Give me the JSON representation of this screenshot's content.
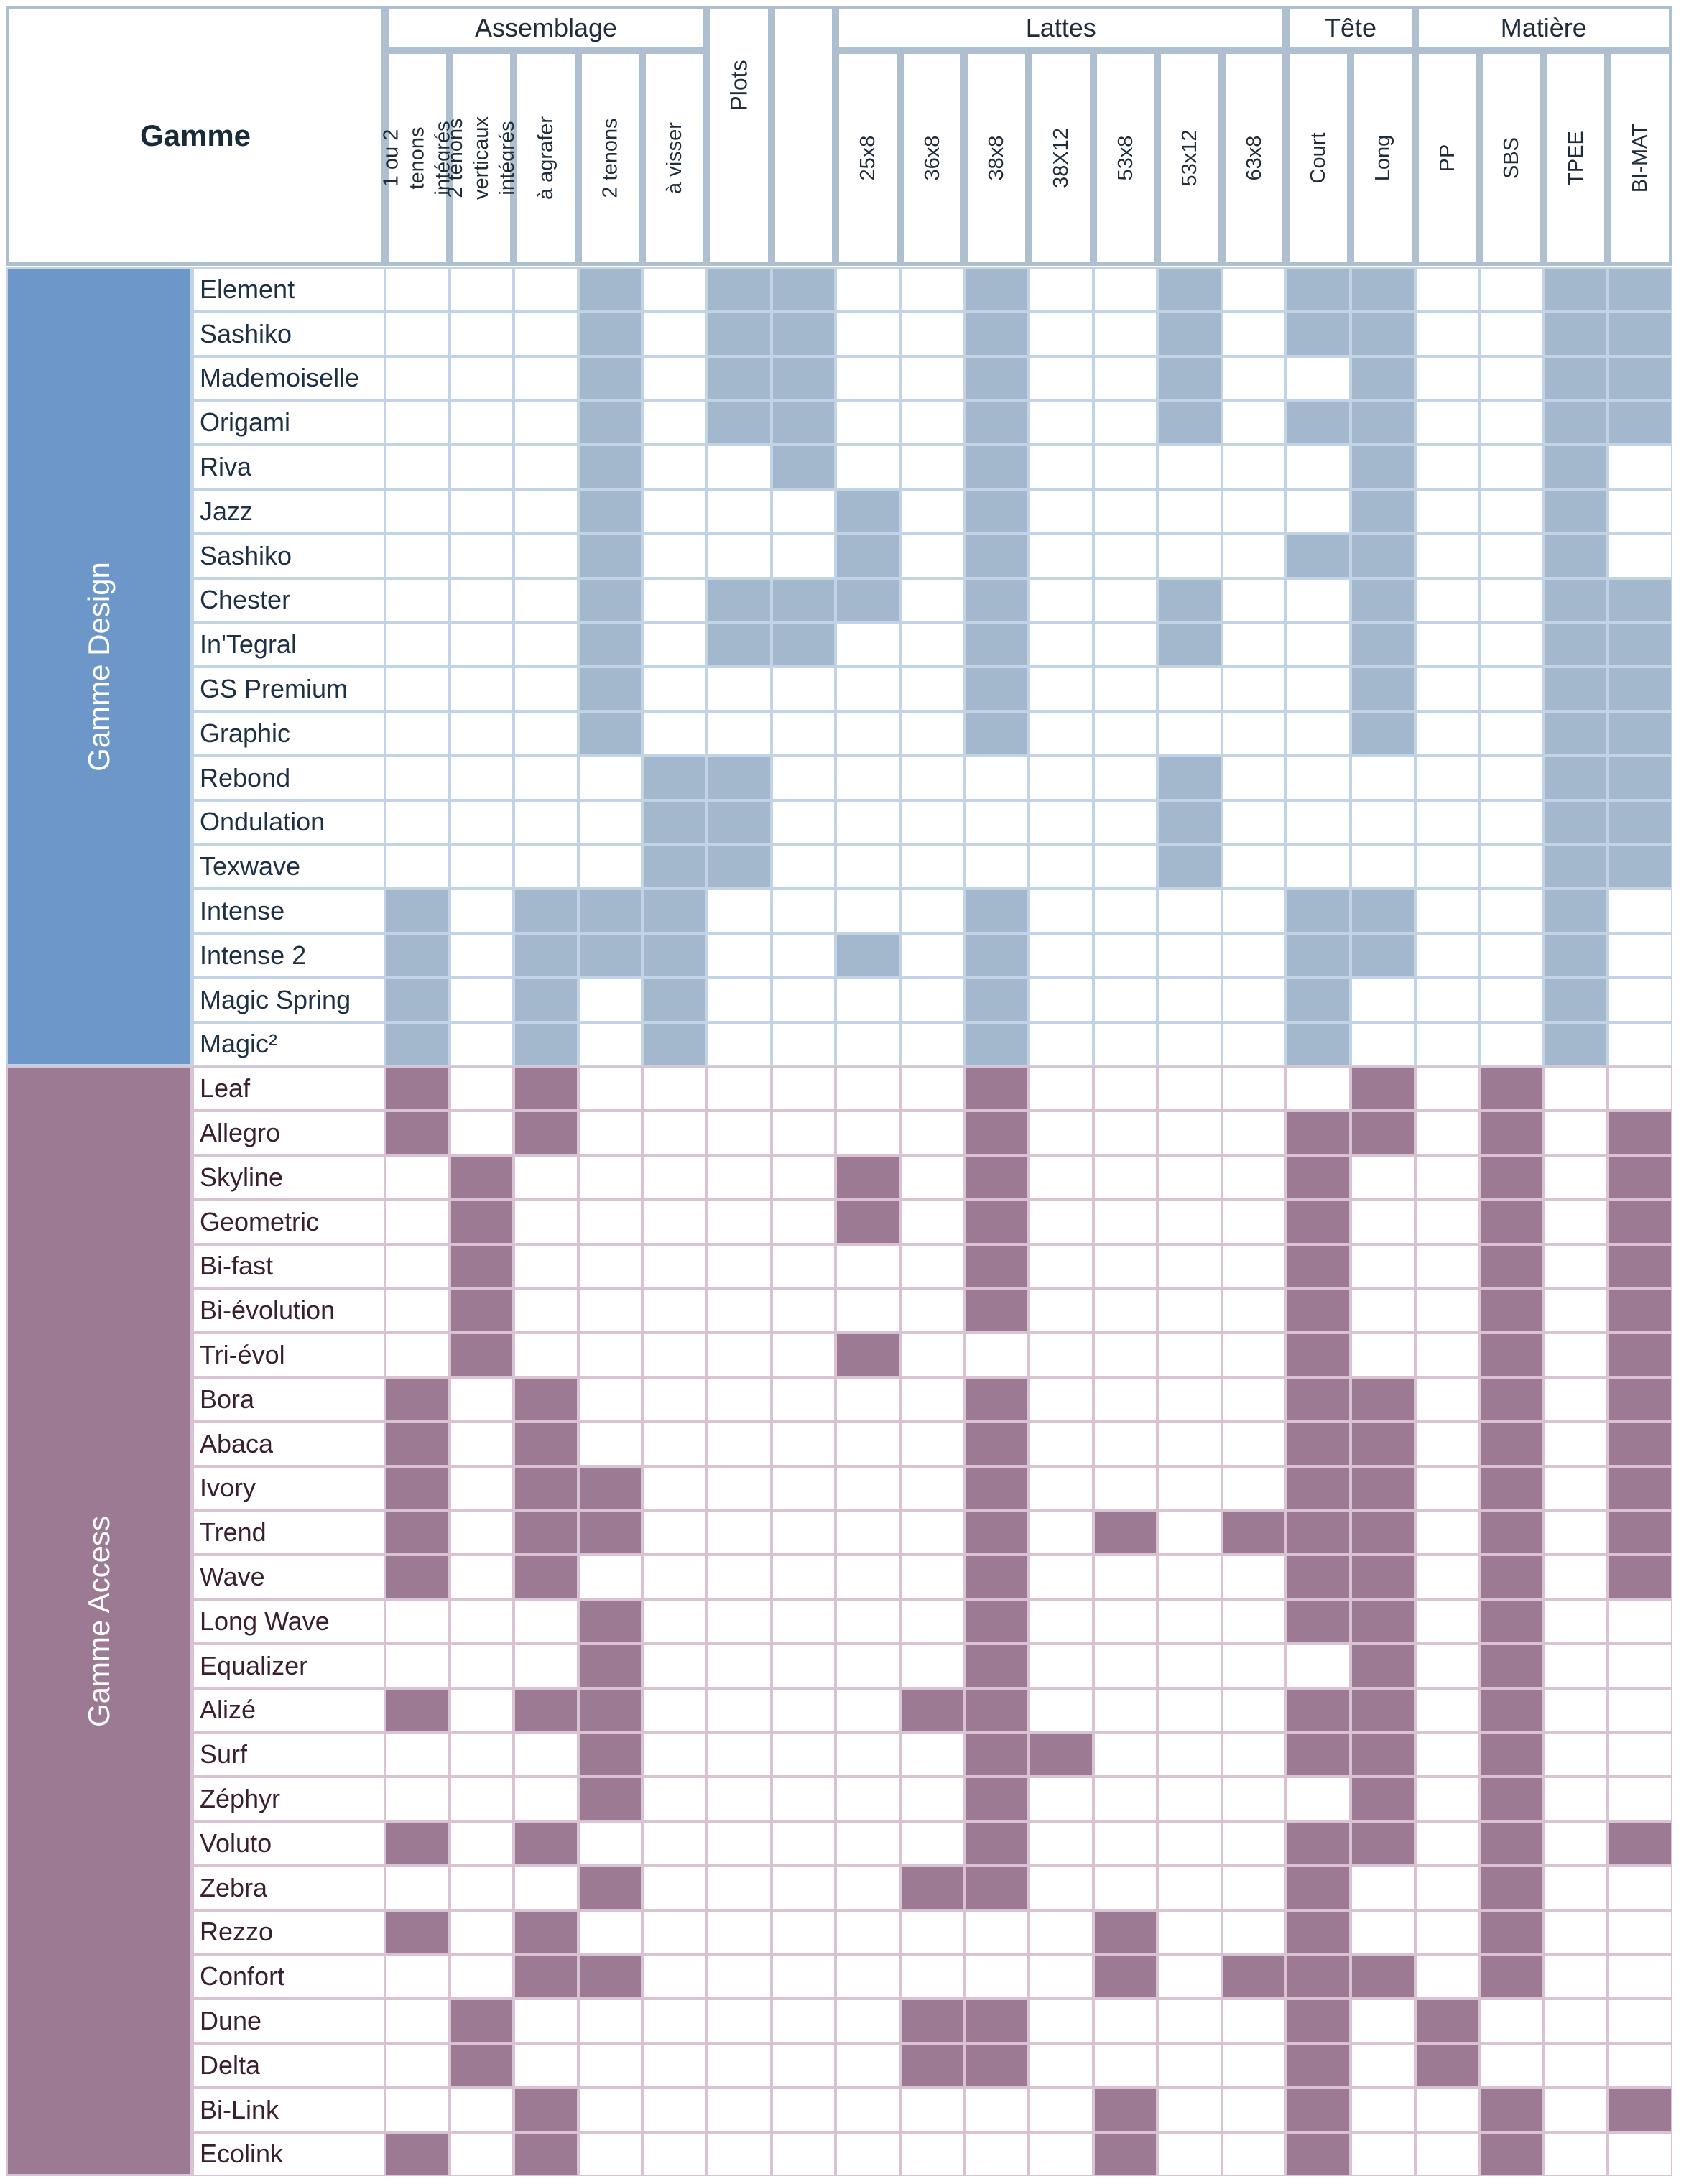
{
  "title": "Gamme",
  "colors": {
    "design_side": "#6e97c9",
    "design_fill": "#a3b8cd",
    "design_line": "#c3d3e6",
    "design_text": "#1d3044",
    "access_side": "#9c7a93",
    "access_fill": "#9c7a93",
    "access_line": "#d9c3d3",
    "access_text": "#3a1f30",
    "header_line": "#aebfcf"
  },
  "groups": [
    {
      "label": "Assemblage",
      "span": 5
    },
    {
      "label": "Plots",
      "span": 1
    },
    {
      "label": "",
      "span": 1
    },
    {
      "label": "Lattes",
      "span": 7
    },
    {
      "label": "Tête",
      "span": 2
    },
    {
      "label": "Matière",
      "span": 4
    }
  ],
  "columns": [
    "1 ou 2 tenons intégrés",
    "2 tenons verticaux intégrés",
    "à agrafer",
    "2 tenons",
    "à visser",
    "Plots",
    "",
    "25x8",
    "36x8",
    "38x8",
    "38X12",
    "53x8",
    "53x12",
    "63x8",
    "Court",
    "Long",
    "PP",
    "SBS",
    "TPEE",
    "BI-MAT"
  ],
  "sections": [
    {
      "label": "Gamme Design",
      "theme": "design",
      "rows": [
        {
          "name": "Element",
          "on": [
            3,
            5,
            6,
            9,
            12,
            14,
            15,
            18,
            19
          ]
        },
        {
          "name": "Sashiko",
          "on": [
            3,
            5,
            6,
            9,
            12,
            14,
            15,
            18,
            19
          ]
        },
        {
          "name": "Mademoiselle",
          "on": [
            3,
            5,
            6,
            9,
            12,
            15,
            18,
            19
          ]
        },
        {
          "name": "Origami",
          "on": [
            3,
            5,
            6,
            9,
            12,
            14,
            15,
            18,
            19
          ]
        },
        {
          "name": "Riva",
          "on": [
            3,
            6,
            9,
            15,
            18
          ]
        },
        {
          "name": "Jazz",
          "on": [
            3,
            7,
            9,
            15,
            18
          ]
        },
        {
          "name": "Sashiko",
          "on": [
            3,
            7,
            9,
            14,
            15,
            18
          ]
        },
        {
          "name": "Chester",
          "on": [
            3,
            5,
            6,
            7,
            9,
            12,
            15,
            18,
            19
          ]
        },
        {
          "name": "In'Tegral",
          "on": [
            3,
            5,
            6,
            9,
            12,
            15,
            18,
            19
          ]
        },
        {
          "name": "GS Premium",
          "on": [
            3,
            9,
            15,
            18,
            19
          ]
        },
        {
          "name": "Graphic",
          "on": [
            3,
            9,
            15,
            18,
            19
          ]
        },
        {
          "name": "Rebond",
          "on": [
            4,
            5,
            12,
            18,
            19
          ]
        },
        {
          "name": "Ondulation",
          "on": [
            4,
            5,
            12,
            18,
            19
          ]
        },
        {
          "name": "Texwave",
          "on": [
            4,
            5,
            12,
            18,
            19
          ]
        },
        {
          "name": "Intense",
          "on": [
            0,
            2,
            3,
            4,
            9,
            14,
            15,
            18
          ]
        },
        {
          "name": "Intense 2",
          "on": [
            0,
            2,
            3,
            4,
            7,
            9,
            14,
            15,
            18
          ]
        },
        {
          "name": "Magic Spring",
          "on": [
            0,
            2,
            4,
            9,
            14,
            18
          ]
        },
        {
          "name": "Magic²",
          "on": [
            0,
            2,
            4,
            9,
            14,
            18
          ]
        }
      ]
    },
    {
      "label": "Gamme Access",
      "theme": "access",
      "rows": [
        {
          "name": "Leaf",
          "on": [
            0,
            2,
            9,
            15,
            17
          ]
        },
        {
          "name": "Allegro",
          "on": [
            0,
            2,
            9,
            14,
            15,
            17,
            19
          ]
        },
        {
          "name": "Skyline",
          "on": [
            1,
            7,
            9,
            14,
            17,
            19
          ]
        },
        {
          "name": "Geometric",
          "on": [
            1,
            7,
            9,
            14,
            17,
            19
          ]
        },
        {
          "name": "Bi-fast",
          "on": [
            1,
            9,
            14,
            17,
            19
          ]
        },
        {
          "name": "Bi-évolution",
          "on": [
            1,
            9,
            14,
            17,
            19
          ]
        },
        {
          "name": "Tri-évol",
          "on": [
            1,
            7,
            14,
            17,
            19
          ]
        },
        {
          "name": "Bora",
          "on": [
            0,
            2,
            9,
            14,
            15,
            17,
            19
          ]
        },
        {
          "name": "Abaca",
          "on": [
            0,
            2,
            9,
            14,
            15,
            17,
            19
          ]
        },
        {
          "name": "Ivory",
          "on": [
            0,
            2,
            3,
            9,
            14,
            15,
            17,
            19
          ]
        },
        {
          "name": "Trend",
          "on": [
            0,
            2,
            3,
            9,
            11,
            13,
            14,
            15,
            17,
            19
          ]
        },
        {
          "name": "Wave",
          "on": [
            0,
            2,
            9,
            14,
            15,
            17,
            19
          ]
        },
        {
          "name": "Long Wave",
          "on": [
            3,
            9,
            14,
            15,
            17
          ]
        },
        {
          "name": "Equalizer",
          "on": [
            3,
            9,
            15,
            17
          ]
        },
        {
          "name": "Alizé",
          "on": [
            0,
            2,
            3,
            8,
            9,
            14,
            15,
            17
          ]
        },
        {
          "name": "Surf",
          "on": [
            3,
            9,
            10,
            14,
            15,
            17
          ]
        },
        {
          "name": "Zéphyr",
          "on": [
            3,
            9,
            15,
            17
          ]
        },
        {
          "name": "Voluto",
          "on": [
            0,
            2,
            9,
            14,
            15,
            17,
            19
          ]
        },
        {
          "name": "Zebra",
          "on": [
            3,
            8,
            9,
            14,
            17
          ]
        },
        {
          "name": "Rezzo",
          "on": [
            0,
            2,
            11,
            14,
            17
          ]
        },
        {
          "name": "Confort",
          "on": [
            2,
            3,
            11,
            13,
            14,
            15,
            17
          ]
        },
        {
          "name": "Dune",
          "on": [
            1,
            8,
            9,
            14,
            16
          ]
        },
        {
          "name": "Delta",
          "on": [
            1,
            8,
            9,
            14,
            16
          ]
        },
        {
          "name": "Bi-Link",
          "on": [
            2,
            11,
            14,
            17,
            19
          ]
        },
        {
          "name": "Ecolink",
          "on": [
            0,
            2,
            11,
            14,
            17
          ]
        }
      ]
    }
  ]
}
